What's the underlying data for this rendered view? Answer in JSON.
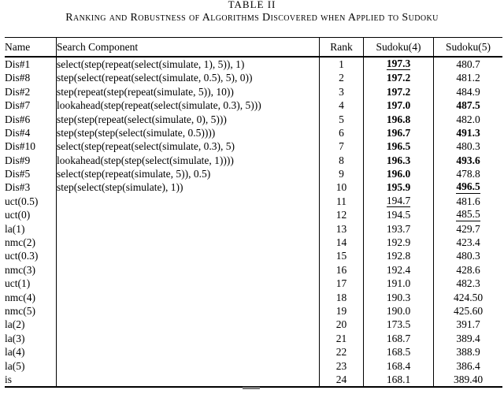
{
  "page": {
    "table_label": "TABLE II",
    "table_caption": "Ranking and Robustness of Algorithms Discovered when Applied to Sudoku"
  },
  "table": {
    "columns": [
      "Name",
      "Search Component",
      "Rank",
      "Sudoku(4)",
      "Sudoku(5)"
    ],
    "rows": [
      {
        "name": "Dis#1",
        "component": "select(step(repeat(select(simulate, 1), 5)), 1)",
        "rank": "1",
        "s4": "197.3",
        "s4_style": "bold-underline",
        "s5": "480.7",
        "s5_style": "normal"
      },
      {
        "name": "Dis#8",
        "component": "step(select(repeat(select(simulate, 0.5), 5), 0))",
        "rank": "2",
        "s4": "197.2",
        "s4_style": "bold",
        "s5": "481.2",
        "s5_style": "normal"
      },
      {
        "name": "Dis#2",
        "component": "step(repeat(step(repeat(simulate, 5)), 10))",
        "rank": "3",
        "s4": "197.2",
        "s4_style": "bold",
        "s5": "484.9",
        "s5_style": "normal"
      },
      {
        "name": "Dis#7",
        "component": "lookahead(step(repeat(select(simulate, 0.3), 5)))",
        "rank": "4",
        "s4": "197.0",
        "s4_style": "bold",
        "s5": "487.5",
        "s5_style": "bold"
      },
      {
        "name": "Dis#6",
        "component": "step(step(repeat(select(simulate, 0), 5)))",
        "rank": "5",
        "s4": "196.8",
        "s4_style": "bold",
        "s5": "482.0",
        "s5_style": "normal"
      },
      {
        "name": "Dis#4",
        "component": "step(step(step(select(simulate, 0.5))))",
        "rank": "6",
        "s4": "196.7",
        "s4_style": "bold",
        "s5": "491.3",
        "s5_style": "bold"
      },
      {
        "name": "Dis#10",
        "component": "select(step(repeat(select(simulate, 0.3), 5)",
        "rank": "7",
        "s4": "196.5",
        "s4_style": "bold",
        "s5": "480.3",
        "s5_style": "normal"
      },
      {
        "name": "Dis#9",
        "component": "lookahead(step(step(select(simulate, 1))))",
        "rank": "8",
        "s4": "196.3",
        "s4_style": "bold",
        "s5": "493.6",
        "s5_style": "bold"
      },
      {
        "name": "Dis#5",
        "component": "select(step(repeat(simulate, 5)), 0.5)",
        "rank": "9",
        "s4": "196.0",
        "s4_style": "bold",
        "s5": "478.8",
        "s5_style": "normal"
      },
      {
        "name": "Dis#3",
        "component": "step(select(step(simulate), 1))",
        "rank": "10",
        "s4": "195.9",
        "s4_style": "bold",
        "s5": "496.5",
        "s5_style": "bold-underline"
      },
      {
        "name": "uct(0.5)",
        "component": "",
        "rank": "11",
        "s4": "194.7",
        "s4_style": "underline",
        "s5": "481.6",
        "s5_style": "normal"
      },
      {
        "name": "uct(0)",
        "component": "",
        "rank": "12",
        "s4": "194.5",
        "s4_style": "normal",
        "s5": "485.5",
        "s5_style": "underline"
      },
      {
        "name": "la(1)",
        "component": "",
        "rank": "13",
        "s4": "193.7",
        "s4_style": "normal",
        "s5": "429.7",
        "s5_style": "normal"
      },
      {
        "name": "nmc(2)",
        "component": "",
        "rank": "14",
        "s4": "192.9",
        "s4_style": "normal",
        "s5": "423.4",
        "s5_style": "normal"
      },
      {
        "name": "uct(0.3)",
        "component": "",
        "rank": "15",
        "s4": "192.8",
        "s4_style": "normal",
        "s5": "480.3",
        "s5_style": "normal"
      },
      {
        "name": "nmc(3)",
        "component": "",
        "rank": "16",
        "s4": "192.4",
        "s4_style": "normal",
        "s5": "428.6",
        "s5_style": "normal"
      },
      {
        "name": "uct(1)",
        "component": "",
        "rank": "17",
        "s4": "191.0",
        "s4_style": "normal",
        "s5": "482.3",
        "s5_style": "normal"
      },
      {
        "name": "nmc(4)",
        "component": "",
        "rank": "18",
        "s4": "190.3",
        "s4_style": "normal",
        "s5": "424.50",
        "s5_style": "normal"
      },
      {
        "name": "nmc(5)",
        "component": "",
        "rank": "19",
        "s4": "190.0",
        "s4_style": "normal",
        "s5": "425.60",
        "s5_style": "normal"
      },
      {
        "name": "la(2)",
        "component": "",
        "rank": "20",
        "s4": "173.5",
        "s4_style": "normal",
        "s5": "391.7",
        "s5_style": "normal"
      },
      {
        "name": "la(3)",
        "component": "",
        "rank": "21",
        "s4": "168.7",
        "s4_style": "normal",
        "s5": "389.4",
        "s5_style": "normal"
      },
      {
        "name": "la(4)",
        "component": "",
        "rank": "22",
        "s4": "168.5",
        "s4_style": "normal",
        "s5": "388.9",
        "s5_style": "normal"
      },
      {
        "name": "la(5)",
        "component": "",
        "rank": "23",
        "s4": "168.4",
        "s4_style": "normal",
        "s5": "386.4",
        "s5_style": "normal"
      },
      {
        "name": "is",
        "component": "",
        "rank": "24",
        "s4": "168.1",
        "s4_style": "normal",
        "s5": "389.40",
        "s5_style": "normal"
      }
    ]
  }
}
